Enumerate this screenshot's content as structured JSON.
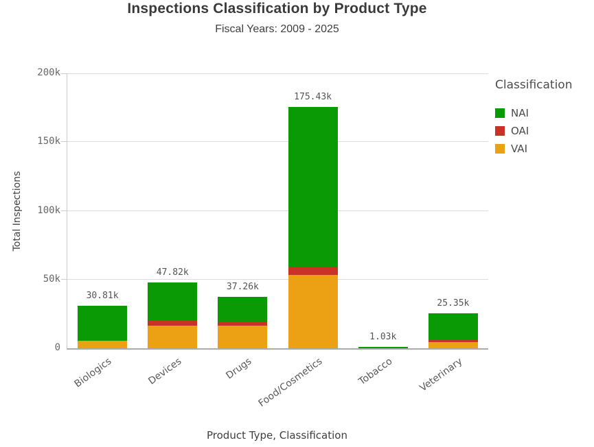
{
  "header": {
    "title": "Inspections Classification by Product Type",
    "subtitle": "Fiscal Years: 2009 - 2025"
  },
  "legend": {
    "title": "Classification",
    "items": [
      {
        "label": "NAI",
        "color": "#0a9a06"
      },
      {
        "label": "OAI",
        "color": "#cb3227"
      },
      {
        "label": "VAI",
        "color": "#eba113"
      }
    ]
  },
  "axes": {
    "y_title": "Total Inspections",
    "x_title": "Product Type, Classification"
  },
  "chart_data": {
    "type": "bar",
    "stacked": true,
    "title": "Inspections Classification by Product Type",
    "subtitle": "Fiscal Years: 2009 - 2025",
    "xlabel": "Product Type, Classification",
    "ylabel": "Total Inspections",
    "value_unit": "thousands",
    "ylim": [
      0,
      200
    ],
    "grid": true,
    "legend_position": "right",
    "legend_title": "Classification",
    "categories": [
      "Biologics",
      "Devices",
      "Drugs",
      "Food/Cosmetics",
      "Tobacco",
      "Veterinary"
    ],
    "stack_order": [
      "VAI",
      "OAI",
      "NAI"
    ],
    "series": [
      {
        "name": "NAI",
        "color": "#0a9a06",
        "values": [
          25.41,
          28.02,
          18.26,
          116.33,
          1.03,
          19.15
        ]
      },
      {
        "name": "OAI",
        "color": "#cb3227",
        "values": [
          0,
          3.2,
          2.4,
          5.6,
          0,
          1.5
        ]
      },
      {
        "name": "VAI",
        "color": "#eba113",
        "values": [
          5.4,
          16.6,
          16.6,
          53.5,
          0,
          4.7
        ]
      }
    ],
    "totals": [
      30.81,
      47.82,
      37.26,
      175.43,
      1.03,
      25.35
    ],
    "total_labels": [
      "30.81k",
      "47.82k",
      "37.26k",
      "175.43k",
      "1.03k",
      "25.35k"
    ],
    "yticks": [
      {
        "label": "200k",
        "value": 200
      },
      {
        "label": "150k",
        "value": 150
      },
      {
        "label": "100k",
        "value": 100
      },
      {
        "label": "50k",
        "value": 50
      },
      {
        "label": "0",
        "value": 0
      }
    ]
  }
}
